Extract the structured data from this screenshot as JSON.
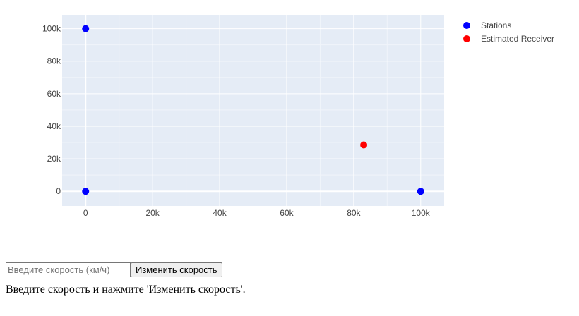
{
  "chart_data": {
    "type": "scatter",
    "title": "",
    "xlabel": "",
    "ylabel": "",
    "xlim": [
      -7000,
      107000
    ],
    "ylim": [
      -9000,
      108500
    ],
    "x_ticks": [
      0,
      20000,
      40000,
      60000,
      80000,
      100000
    ],
    "x_tick_labels": [
      "0",
      "20k",
      "40k",
      "60k",
      "80k",
      "100k"
    ],
    "y_ticks": [
      0,
      20000,
      40000,
      60000,
      80000,
      100000
    ],
    "y_tick_labels": [
      "0",
      "20k",
      "40k",
      "60k",
      "80k",
      "100k"
    ],
    "grid": true,
    "legend_position": "top-right",
    "series": [
      {
        "name": "Stations",
        "color": "#0000ff",
        "points": [
          {
            "x": 0,
            "y": 100000
          },
          {
            "x": 0,
            "y": 0
          },
          {
            "x": 100000,
            "y": 0
          }
        ]
      },
      {
        "name": "Estimated Receiver",
        "color": "#ff0000",
        "points": [
          {
            "x": 83000,
            "y": 28500
          }
        ]
      }
    ]
  },
  "controls": {
    "speed_placeholder": "Введите скорость (км/ч)",
    "speed_value": "",
    "change_speed_label": "Изменить скорость"
  },
  "status": {
    "message": "Введите скорость и нажмите 'Изменить скорость'."
  }
}
